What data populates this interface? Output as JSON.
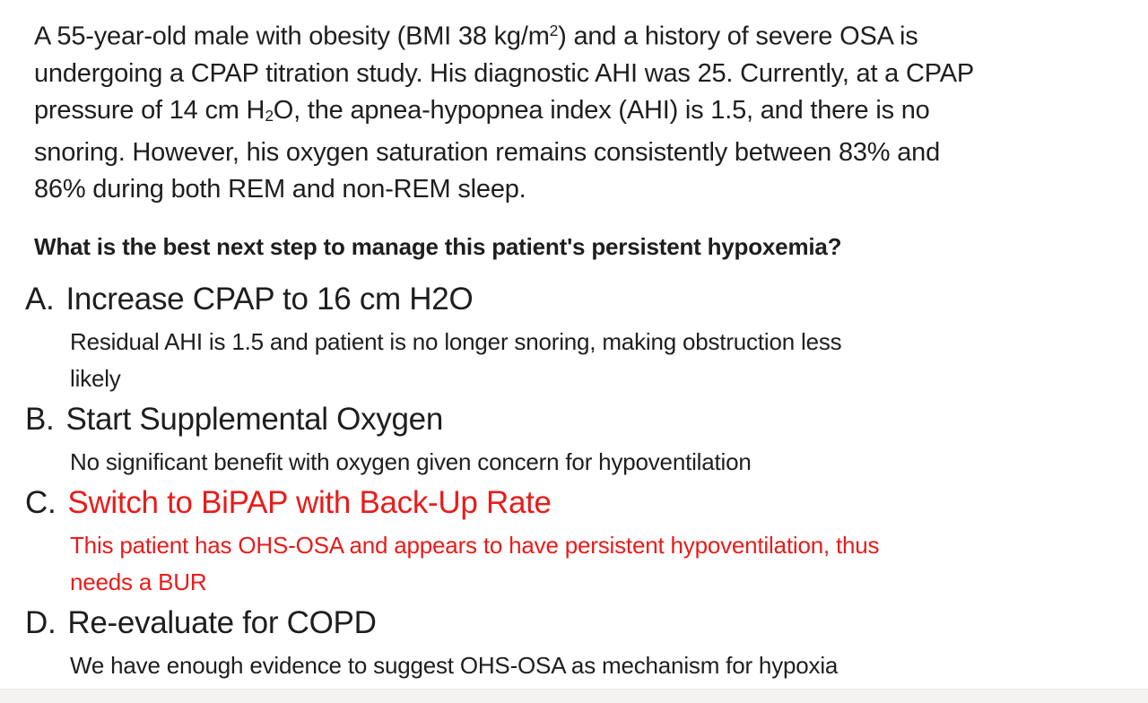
{
  "page": {
    "background": "#ffffff",
    "text_color": "#1e1e1e",
    "accent_red": "#e81c1a",
    "bottom_bar_color": "#f4f3f1"
  },
  "stem": {
    "line1_pre": "A 55-year-old male with obesity (BMI 38 kg/m",
    "line1_sup": "2",
    "line1_post": ") and a history of severe OSA is",
    "line2": "undergoing a CPAP titration study. His diagnostic AHI was 25. Currently, at a CPAP",
    "line3_pre": "pressure of 14 cm H",
    "line3_sub": "2",
    "line3_post": "O, the apnea-hypopnea index (AHI) is 1.5, and there is no",
    "line4": "snoring. However, his oxygen saturation remains consistently between 83% and",
    "line5": "86% during both REM and non-REM sleep."
  },
  "question": "What is the best next step to manage this patient's persistent hypoxemia?",
  "options": [
    {
      "letter": "A.",
      "title": "Increase CPAP to 16 cm H2O",
      "highlight": false,
      "expl_lines": [
        "Residual AHI is 1.5 and patient is no longer snoring, making obstruction less",
        "likely"
      ]
    },
    {
      "letter": "B.",
      "title": "Start Supplemental Oxygen",
      "highlight": false,
      "expl_lines": [
        "No significant benefit with oxygen given concern for hypoventilation"
      ]
    },
    {
      "letter": "C.",
      "title": "Switch to BiPAP with Back-Up Rate",
      "highlight": true,
      "expl_lines": [
        "This patient has OHS-OSA and appears to have persistent hypoventilation, thus",
        "needs a BUR"
      ]
    },
    {
      "letter": "D.",
      "title": "Re-evaluate for COPD",
      "highlight": false,
      "expl_lines": [
        "We have enough evidence to suggest OHS-OSA as mechanism for hypoxia"
      ]
    }
  ]
}
